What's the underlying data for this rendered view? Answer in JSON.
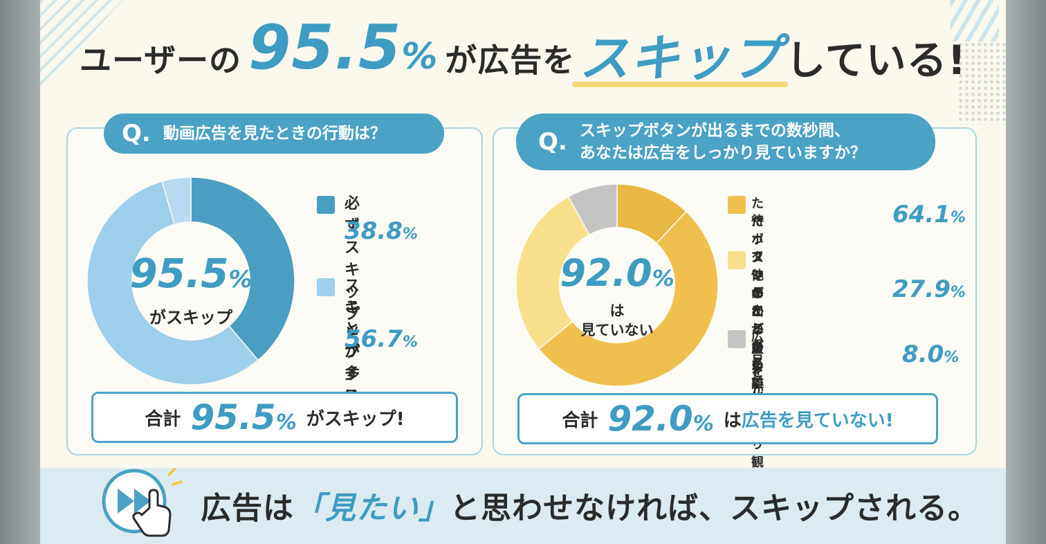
{
  "title": {
    "prefix": "ユーザーの",
    "big_number": "95.5",
    "big_unit": "%",
    "middle": "が広告を",
    "emphasis": "スキップ",
    "suffix": "している!"
  },
  "left_panel": {
    "q_mark": "Q.",
    "question": "動画広告を見たときの行動は？",
    "center_value": "95.5",
    "center_unit": "%",
    "center_sub": "がスキップ",
    "legend": [
      {
        "label_lines": [
          "必ずスキップ"
        ],
        "value": "38.8",
        "unit": "%",
        "color": "#4a9ec2"
      },
      {
        "label_lines": [
          "スキップする",
          "ことが多い"
        ],
        "value": "56.7",
        "unit": "%",
        "color": "#9ecfec"
      }
    ],
    "total": {
      "label": "合計",
      "value": "95.5",
      "unit": "%",
      "rest": "がスキップ!"
    }
  },
  "right_panel": {
    "q_mark": "Q.",
    "question_line1": "スキップボタンが出るまでの数秒間、",
    "question_line2": "あなたは広告をしっかり見ていますか？",
    "center_value": "92.0",
    "center_unit": "%",
    "center_sub1": "は",
    "center_sub2": "見ていない",
    "legend": [
      {
        "label_lines": [
          "ただボタンが出るのを",
          "待っていることが多い"
        ],
        "value": "64.1",
        "unit": "%",
        "color": "#f0c04f"
      },
      {
        "label_lines": [
          "スマホから目を離すなど、",
          "他のことをしている",
          "ことが多い"
        ],
        "value": "27.9",
        "unit": "%",
        "color": "#f8df8c"
      },
      {
        "label_lines": [
          "広告をしっかり観る",
          "ことが多い"
        ],
        "value": "8.0",
        "unit": "%",
        "color": "#c4c4c4"
      }
    ],
    "total": {
      "label": "合計",
      "value": "92.0",
      "unit": "%",
      "rest_prefix": "は",
      "rest_blue": "広告を見ていない!"
    }
  },
  "footer": {
    "text_before": "広告は",
    "quoted": "「見たい」",
    "text_after": "と思わせなければ、スキップされる。",
    "icon": "fast-forward-tap-icon"
  },
  "chart_data": [
    {
      "type": "pie",
      "categories": [
        "必ずスキップ",
        "スキップすることが多い"
      ],
      "values": [
        38.8,
        56.7
      ],
      "remainder": 4.5,
      "colors": [
        "#4a9ec2",
        "#9ecfec"
      ],
      "remainder_color": "#b7daf0"
    },
    {
      "type": "pie",
      "categories": [
        "ただボタンが出るのを待っていることが多い",
        "スマホから目を離すなど、他のことをしていることが多い",
        "広告をしっかり観ることが多い"
      ],
      "values": [
        64.1,
        27.9,
        8.0
      ],
      "colors": [
        "#f0c04f",
        "#f8df8c",
        "#c4c4c4"
      ],
      "split_first": {
        "value": 12.0,
        "color": "#e9b842"
      }
    }
  ]
}
